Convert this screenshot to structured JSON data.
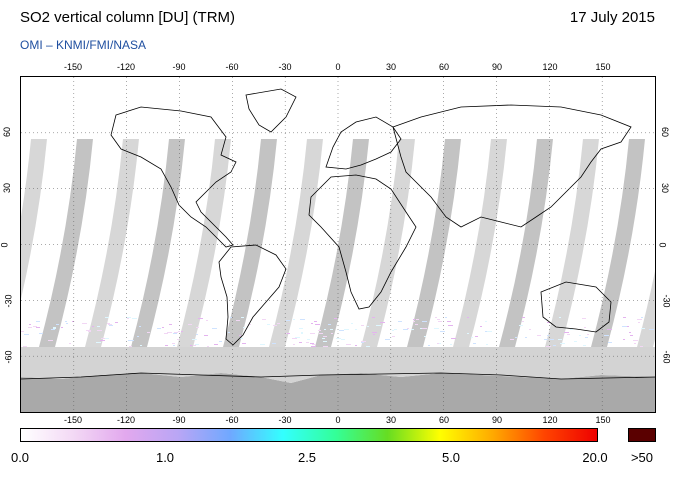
{
  "header": {
    "title": "SO2 vertical column [DU] (TRM)",
    "date": "17 July 2015",
    "subtitle": "OMI  –  KNMI/FMI/NASA"
  },
  "map": {
    "projection": "equirectangular",
    "lon_ticks": [
      "-150",
      "-120",
      "-90",
      "-60",
      "-30",
      "0",
      "30",
      "60",
      "90",
      "120",
      "150"
    ],
    "lat_ticks": [
      "60",
      "30",
      "0",
      "-30",
      "-60"
    ],
    "lon_range": [
      -180,
      180
    ],
    "lat_range": [
      -90,
      90
    ],
    "grid": "dotted",
    "no_data_color": "#d3d3d3",
    "land_no_data_color": "#a9a9a9"
  },
  "colorbar": {
    "labels": [
      "0.0",
      "1.0",
      "2.5",
      "5.0",
      "20.0"
    ],
    "max_label": ">50",
    "colors": [
      "#ffffff",
      "#f3d9f5",
      "#e2a8ee",
      "#b9a6f5",
      "#6fa8ff",
      "#33ffff",
      "#33ff99",
      "#66dd22",
      "#ffff00",
      "#ffaa00",
      "#ff4400",
      "#ee0000"
    ],
    "max_color": "#5a0000"
  }
}
